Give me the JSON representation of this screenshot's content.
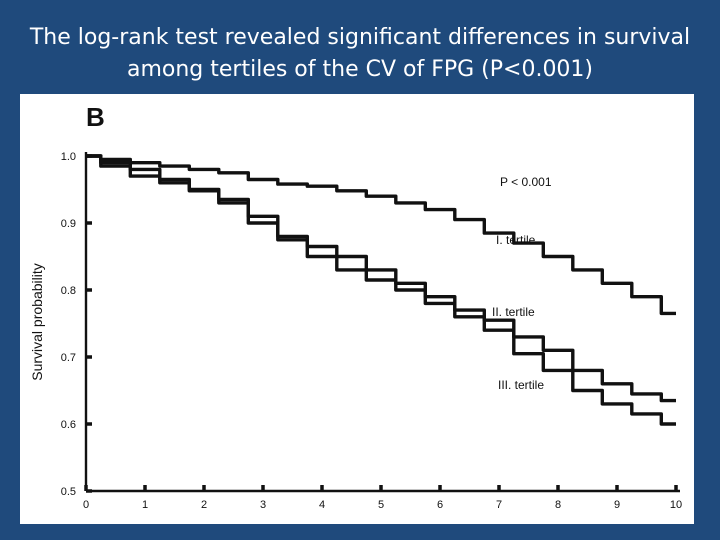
{
  "slide": {
    "title_line1": "The log-rank test revealed significant differences in survival",
    "title_line2": "among tertiles of the CV of FPG (P<0.001)"
  },
  "chart_data": {
    "type": "line",
    "panel_label": "B",
    "xlabel": "",
    "ylabel": "Survival probability",
    "xlim": [
      0,
      10
    ],
    "ylim": [
      0.5,
      1.0
    ],
    "x_ticks": [
      "0",
      "1",
      "2",
      "3",
      "4",
      "5",
      "6",
      "7",
      "8",
      "9",
      "10"
    ],
    "y_ticks": [
      "1.0",
      "0.9",
      "0.8",
      "0.7",
      "0.6",
      "0.5"
    ],
    "annotation": "P < 0.001",
    "series_labels": [
      "I. tertile",
      "II. tertile",
      "III. tertile"
    ],
    "series": [
      {
        "name": "I. tertile",
        "x": [
          0,
          0.5,
          1,
          1.5,
          2,
          2.5,
          3,
          3.5,
          4,
          4.5,
          5,
          5.5,
          6,
          6.5,
          7,
          7.5,
          8,
          8.5,
          9,
          9.5,
          10
        ],
        "y": [
          1.0,
          0.995,
          0.99,
          0.985,
          0.98,
          0.975,
          0.965,
          0.958,
          0.955,
          0.948,
          0.94,
          0.93,
          0.92,
          0.905,
          0.885,
          0.87,
          0.85,
          0.83,
          0.81,
          0.79,
          0.765
        ]
      },
      {
        "name": "II. tertile",
        "x": [
          0,
          0.5,
          1,
          1.5,
          2,
          2.5,
          3,
          3.5,
          4,
          4.5,
          5,
          5.5,
          6,
          6.5,
          7,
          7.5,
          8,
          8.5,
          9,
          9.5,
          10
        ],
        "y": [
          1.0,
          0.99,
          0.98,
          0.965,
          0.95,
          0.93,
          0.9,
          0.88,
          0.865,
          0.85,
          0.83,
          0.81,
          0.79,
          0.77,
          0.755,
          0.73,
          0.71,
          0.68,
          0.66,
          0.645,
          0.635
        ]
      },
      {
        "name": "III. tertile",
        "x": [
          0,
          0.5,
          1,
          1.5,
          2,
          2.5,
          3,
          3.5,
          4,
          4.5,
          5,
          5.5,
          6,
          6.5,
          7,
          7.5,
          8,
          8.5,
          9,
          9.5,
          10
        ],
        "y": [
          1.0,
          0.985,
          0.97,
          0.96,
          0.948,
          0.935,
          0.91,
          0.875,
          0.85,
          0.83,
          0.815,
          0.8,
          0.78,
          0.76,
          0.74,
          0.705,
          0.68,
          0.65,
          0.63,
          0.615,
          0.6
        ]
      }
    ],
    "grid": false
  }
}
